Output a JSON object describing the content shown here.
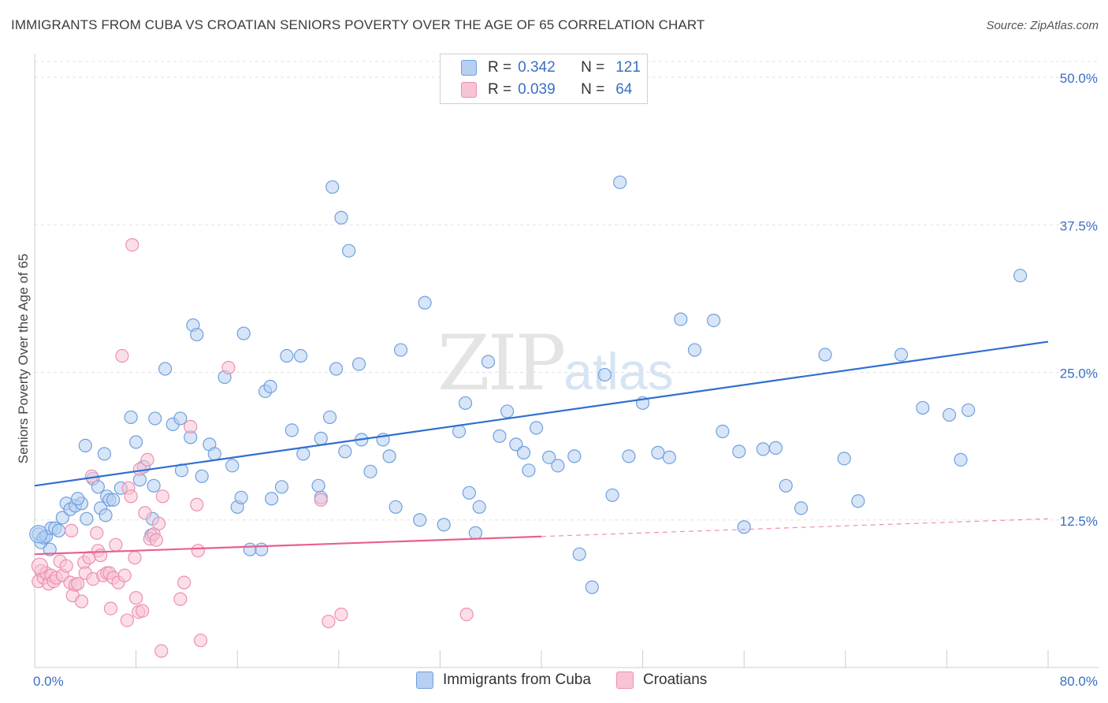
{
  "title": "IMMIGRANTS FROM CUBA VS CROATIAN SENIORS POVERTY OVER THE AGE OF 65 CORRELATION CHART",
  "source": "Source: ZipAtlas.com",
  "watermark": {
    "zip": "ZIP",
    "atlas": "atlas"
  },
  "legend": {
    "rows": [
      {
        "r_label": "R =",
        "r_value": "0.342",
        "n_label": "N =",
        "n_value": "121",
        "color": "#6fa0e0"
      },
      {
        "r_label": "R =",
        "r_value": "0.039",
        "n_label": "N =",
        "n_value": "64",
        "color": "#f08fb0"
      }
    ]
  },
  "bottom_legend": {
    "items": [
      "Immigrants from Cuba",
      "Croatians"
    ]
  },
  "colors": {
    "blue_fill": "#b7cff1",
    "blue_stroke": "#6fa0e0",
    "blue_line": "#2f6fcf",
    "pink_fill": "#f7c4d4",
    "pink_stroke": "#ee8fb0",
    "pink_line": "#e8608e",
    "tick_label": "#3a6fc4",
    "grid": "#e3e3e3"
  },
  "chart_data": {
    "type": "scatter",
    "title": "IMMIGRANTS FROM CUBA VS CROATIAN SENIORS POVERTY OVER THE AGE OF 65 CORRELATION CHART",
    "xlabel": "",
    "ylabel": "Seniors Poverty Over the Age of 65",
    "xlim": [
      0,
      80
    ],
    "ylim": [
      0,
      50
    ],
    "x_tick_labels": [
      "0.0%",
      "80.0%"
    ],
    "y_ticks": [
      12.5,
      25.0,
      37.5,
      50.0
    ],
    "y_tick_labels": [
      "12.5%",
      "25.0%",
      "37.5%",
      "50.0%"
    ],
    "grid": true,
    "legend_position": "top-center",
    "series": [
      {
        "name": "Immigrants from Cuba",
        "color": "#6fa0e0",
        "trend": {
          "x": [
            0,
            80
          ],
          "y": [
            15.4,
            27.6
          ],
          "style": "solid"
        },
        "points": [
          [
            0.3,
            11.3
          ],
          [
            0.5,
            10.6
          ],
          [
            0.7,
            11.0
          ],
          [
            0.9,
            11.1
          ],
          [
            1.2,
            10.0
          ],
          [
            1.3,
            11.8
          ],
          [
            1.6,
            11.8
          ],
          [
            1.9,
            11.6
          ],
          [
            2.2,
            12.7
          ],
          [
            2.5,
            13.9
          ],
          [
            2.8,
            13.4
          ],
          [
            3.2,
            13.7
          ],
          [
            3.7,
            13.9
          ],
          [
            3.4,
            14.3
          ],
          [
            4.1,
            12.6
          ],
          [
            4.0,
            18.8
          ],
          [
            4.6,
            16.0
          ],
          [
            5.0,
            15.3
          ],
          [
            5.2,
            13.5
          ],
          [
            5.6,
            12.9
          ],
          [
            5.7,
            14.5
          ],
          [
            5.9,
            14.2
          ],
          [
            6.2,
            14.2
          ],
          [
            5.5,
            18.1
          ],
          [
            6.8,
            15.2
          ],
          [
            7.6,
            21.2
          ],
          [
            8.0,
            19.1
          ],
          [
            8.3,
            15.9
          ],
          [
            8.6,
            17.0
          ],
          [
            9.5,
            21.1
          ],
          [
            9.3,
            12.6
          ],
          [
            9.2,
            11.2
          ],
          [
            9.4,
            15.4
          ],
          [
            10.3,
            25.3
          ],
          [
            10.9,
            20.6
          ],
          [
            11.5,
            21.1
          ],
          [
            11.6,
            16.7
          ],
          [
            12.3,
            19.5
          ],
          [
            12.5,
            29.0
          ],
          [
            12.8,
            28.2
          ],
          [
            13.2,
            16.2
          ],
          [
            13.8,
            18.9
          ],
          [
            14.2,
            18.1
          ],
          [
            15.0,
            24.6
          ],
          [
            15.6,
            17.1
          ],
          [
            16.0,
            13.6
          ],
          [
            16.3,
            14.4
          ],
          [
            16.5,
            28.3
          ],
          [
            17.0,
            10.0
          ],
          [
            17.9,
            10.0
          ],
          [
            18.2,
            23.4
          ],
          [
            18.7,
            14.3
          ],
          [
            18.6,
            23.8
          ],
          [
            19.5,
            15.3
          ],
          [
            19.9,
            26.4
          ],
          [
            20.3,
            20.1
          ],
          [
            21.0,
            26.4
          ],
          [
            21.2,
            18.1
          ],
          [
            22.4,
            15.4
          ],
          [
            22.6,
            14.4
          ],
          [
            22.6,
            19.4
          ],
          [
            23.3,
            21.2
          ],
          [
            23.8,
            25.3
          ],
          [
            23.5,
            40.7
          ],
          [
            24.5,
            18.3
          ],
          [
            24.8,
            35.3
          ],
          [
            25.6,
            25.7
          ],
          [
            24.2,
            38.1
          ],
          [
            25.8,
            19.3
          ],
          [
            26.5,
            16.6
          ],
          [
            27.5,
            19.3
          ],
          [
            28.0,
            17.9
          ],
          [
            28.5,
            13.6
          ],
          [
            28.9,
            26.9
          ],
          [
            30.4,
            12.5
          ],
          [
            30.8,
            30.9
          ],
          [
            32.3,
            12.1
          ],
          [
            33.5,
            20.0
          ],
          [
            34.0,
            22.4
          ],
          [
            34.3,
            14.8
          ],
          [
            34.8,
            11.4
          ],
          [
            35.1,
            13.6
          ],
          [
            35.8,
            25.9
          ],
          [
            36.7,
            19.6
          ],
          [
            37.3,
            21.7
          ],
          [
            38.0,
            18.9
          ],
          [
            38.6,
            18.2
          ],
          [
            39.0,
            16.7
          ],
          [
            39.6,
            20.3
          ],
          [
            40.6,
            17.8
          ],
          [
            41.3,
            17.1
          ],
          [
            42.6,
            17.9
          ],
          [
            43.0,
            9.6
          ],
          [
            44.0,
            6.8
          ],
          [
            45.0,
            24.8
          ],
          [
            45.6,
            14.6
          ],
          [
            46.2,
            41.1
          ],
          [
            46.9,
            17.9
          ],
          [
            48.0,
            22.4
          ],
          [
            49.2,
            18.2
          ],
          [
            50.1,
            17.8
          ],
          [
            52.1,
            26.9
          ],
          [
            53.6,
            29.4
          ],
          [
            51.0,
            29.5
          ],
          [
            54.3,
            20.0
          ],
          [
            55.6,
            18.3
          ],
          [
            56.0,
            11.9
          ],
          [
            57.5,
            18.5
          ],
          [
            58.5,
            18.6
          ],
          [
            59.3,
            15.4
          ],
          [
            60.5,
            13.5
          ],
          [
            62.4,
            26.5
          ],
          [
            63.9,
            17.7
          ],
          [
            65.0,
            14.1
          ],
          [
            68.4,
            26.5
          ],
          [
            70.1,
            22.0
          ],
          [
            73.1,
            17.6
          ],
          [
            72.2,
            21.4
          ],
          [
            77.8,
            33.2
          ],
          [
            73.7,
            21.8
          ]
        ]
      },
      {
        "name": "Croatians",
        "color": "#ee8fb0",
        "trend": {
          "x": [
            0,
            80
          ],
          "y": [
            9.6,
            12.6
          ],
          "solid_until_x": 40,
          "style": "solid-then-dashed"
        },
        "points": [
          [
            0.3,
            7.3
          ],
          [
            0.5,
            8.2
          ],
          [
            0.7,
            7.6
          ],
          [
            0.9,
            8.0
          ],
          [
            1.1,
            7.1
          ],
          [
            1.3,
            7.8
          ],
          [
            1.5,
            7.3
          ],
          [
            1.7,
            7.6
          ],
          [
            2.0,
            9.0
          ],
          [
            2.2,
            7.8
          ],
          [
            2.5,
            8.6
          ],
          [
            2.8,
            7.2
          ],
          [
            2.9,
            11.6
          ],
          [
            3.0,
            6.1
          ],
          [
            3.2,
            7.0
          ],
          [
            3.4,
            7.1
          ],
          [
            3.7,
            5.6
          ],
          [
            3.9,
            8.9
          ],
          [
            4.0,
            8.0
          ],
          [
            4.3,
            9.3
          ],
          [
            4.6,
            7.5
          ],
          [
            4.9,
            11.4
          ],
          [
            4.5,
            16.2
          ],
          [
            5.0,
            9.9
          ],
          [
            5.2,
            9.5
          ],
          [
            5.4,
            7.8
          ],
          [
            5.7,
            8.0
          ],
          [
            5.9,
            8.0
          ],
          [
            6.0,
            5.0
          ],
          [
            6.2,
            7.6
          ],
          [
            6.4,
            10.4
          ],
          [
            6.6,
            7.2
          ],
          [
            6.9,
            26.4
          ],
          [
            7.1,
            7.8
          ],
          [
            7.3,
            4.0
          ],
          [
            7.4,
            15.2
          ],
          [
            7.6,
            14.5
          ],
          [
            7.7,
            35.8
          ],
          [
            7.9,
            9.3
          ],
          [
            8.0,
            5.9
          ],
          [
            8.2,
            4.7
          ],
          [
            8.3,
            16.8
          ],
          [
            8.5,
            4.8
          ],
          [
            8.7,
            13.1
          ],
          [
            8.9,
            17.6
          ],
          [
            9.1,
            10.9
          ],
          [
            9.4,
            11.3
          ],
          [
            9.6,
            10.8
          ],
          [
            9.8,
            12.2
          ],
          [
            10.0,
            1.4
          ],
          [
            10.1,
            14.5
          ],
          [
            11.5,
            5.8
          ],
          [
            11.8,
            7.2
          ],
          [
            12.3,
            20.4
          ],
          [
            12.8,
            13.8
          ],
          [
            12.9,
            9.9
          ],
          [
            13.1,
            2.3
          ],
          [
            15.3,
            25.4
          ],
          [
            22.6,
            14.2
          ],
          [
            23.2,
            3.9
          ],
          [
            24.2,
            4.5
          ],
          [
            34.1,
            4.5
          ]
        ]
      }
    ]
  }
}
